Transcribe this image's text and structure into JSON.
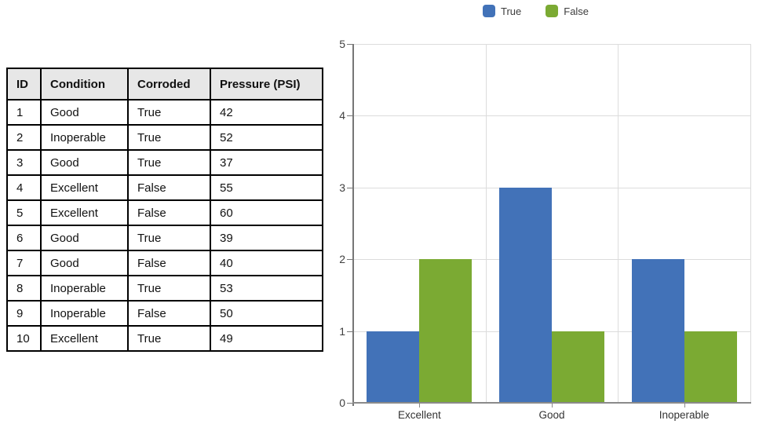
{
  "table": {
    "headers": [
      "ID",
      "Condition",
      "Corroded",
      "Pressure (PSI)"
    ],
    "rows": [
      [
        "1",
        "Good",
        "True",
        "42"
      ],
      [
        "2",
        "Inoperable",
        "True",
        "52"
      ],
      [
        "3",
        "Good",
        "True",
        "37"
      ],
      [
        "4",
        "Excellent",
        "False",
        "55"
      ],
      [
        "5",
        "Excellent",
        "False",
        "60"
      ],
      [
        "6",
        "Good",
        "True",
        "39"
      ],
      [
        "7",
        "Good",
        "False",
        "40"
      ],
      [
        "8",
        "Inoperable",
        "True",
        "53"
      ],
      [
        "9",
        "Inoperable",
        "False",
        "50"
      ],
      [
        "10",
        "Excellent",
        "True",
        "49"
      ]
    ],
    "header_bg": "#E7E7E7",
    "border_color": "#000000"
  },
  "chart_data": {
    "type": "bar",
    "categories": [
      "Excellent",
      "Good",
      "Inoperable"
    ],
    "series": [
      {
        "name": "True",
        "color": "#4272B8",
        "values": [
          1,
          3,
          2
        ]
      },
      {
        "name": "False",
        "color": "#7BAA33",
        "values": [
          2,
          1,
          1
        ]
      }
    ],
    "title": "",
    "xlabel": "",
    "ylabel": "",
    "ylim": [
      0,
      5
    ],
    "yticks": [
      0,
      1,
      2,
      3,
      4,
      5
    ],
    "grid": true,
    "legend_position": "top",
    "legend_labels": [
      "True",
      "False"
    ],
    "gridline_color": "#DCDCDC",
    "axis_color": "#767676"
  }
}
